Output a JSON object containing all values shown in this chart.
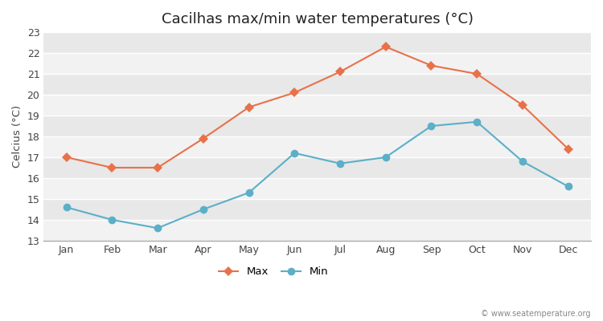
{
  "months": [
    "Jan",
    "Feb",
    "Mar",
    "Apr",
    "May",
    "Jun",
    "Jul",
    "Aug",
    "Sep",
    "Oct",
    "Nov",
    "Dec"
  ],
  "max_temps": [
    17.0,
    16.5,
    16.5,
    17.9,
    19.4,
    20.1,
    21.1,
    22.3,
    21.4,
    21.0,
    19.5,
    17.4
  ],
  "min_temps": [
    14.6,
    14.0,
    13.6,
    14.5,
    15.3,
    17.2,
    16.7,
    17.0,
    18.5,
    18.7,
    16.8,
    15.6
  ],
  "max_color": "#e8714a",
  "min_color": "#5bafc8",
  "outer_bg_color": "#ffffff",
  "plot_bg_color": "#e8e8e8",
  "stripe_color": "#f2f2f2",
  "grid_line_color": "#ffffff",
  "title": "Cacilhas max/min water temperatures (°C)",
  "ylabel": "Celcius (°C)",
  "ylim": [
    13,
    23
  ],
  "yticks": [
    13,
    14,
    15,
    16,
    17,
    18,
    19,
    20,
    21,
    22,
    23
  ],
  "legend_labels": [
    "Max",
    "Min"
  ],
  "watermark": "© www.seatemperature.org",
  "title_fontsize": 13,
  "label_fontsize": 9.5,
  "tick_fontsize": 9,
  "marker_size_max": 6,
  "marker_size_min": 7,
  "line_width": 1.5
}
